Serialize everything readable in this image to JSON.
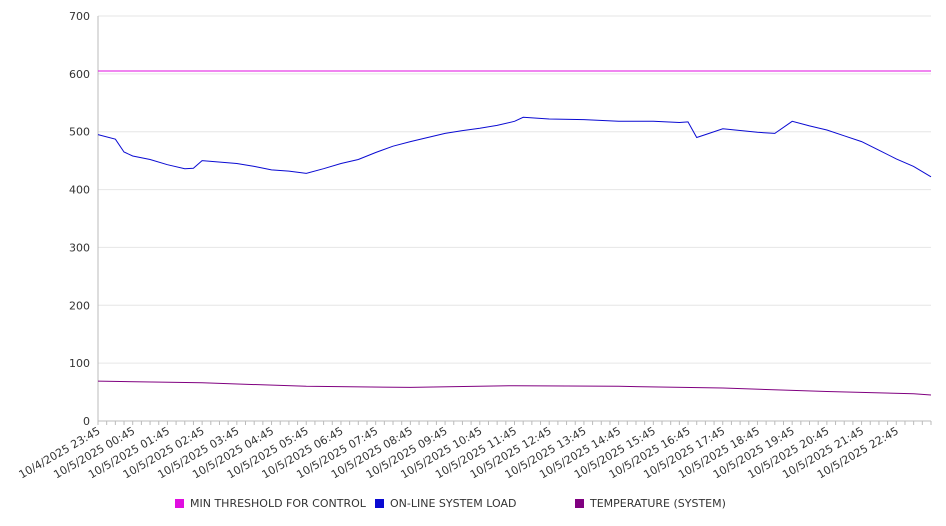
{
  "chart_data": {
    "type": "line",
    "ylim": [
      0,
      700
    ],
    "yticks": [
      0,
      100,
      200,
      300,
      400,
      500,
      600,
      700
    ],
    "xtick_labels": [
      "10/4/2025 23:45",
      "10/5/2025 00:45",
      "10/5/2025 01:45",
      "10/5/2025 02:45",
      "10/5/2025 03:45",
      "10/5/2025 04:45",
      "10/5/2025 05:45",
      "10/5/2025 06:45",
      "10/5/2025 07:45",
      "10/5/2025 08:45",
      "10/5/2025 09:45",
      "10/5/2025 10:45",
      "10/5/2025 11:45",
      "10/5/2025 12:45",
      "10/5/2025 13:45",
      "10/5/2025 14:45",
      "10/5/2025 15:45",
      "10/5/2025 16:45",
      "10/5/2025 17:45",
      "10/5/2025 18:45",
      "10/5/2025 19:45",
      "10/5/2025 20:45",
      "10/5/2025 21:45",
      "10/5/2025 22:45"
    ],
    "grid": true,
    "legend_position": "bottom",
    "series": [
      {
        "name": "MIN THRESHOLD FOR CONTROL",
        "color": "#e00ee0",
        "x": [
          "10/4/2025 23:45",
          "10/5/2025 23:45"
        ],
        "y": [
          605,
          605
        ]
      },
      {
        "name": "ON-LINE SYSTEM LOAD",
        "color": "#0a0ad2",
        "x": [
          "10/4/2025 23:45",
          "10/5/2025 00:15",
          "10/5/2025 00:30",
          "10/5/2025 00:45",
          "10/5/2025 01:15",
          "10/5/2025 01:45",
          "10/5/2025 02:15",
          "10/5/2025 02:30",
          "10/5/2025 02:45",
          "10/5/2025 03:45",
          "10/5/2025 04:15",
          "10/5/2025 04:45",
          "10/5/2025 05:15",
          "10/5/2025 05:45",
          "10/5/2025 06:15",
          "10/5/2025 06:45",
          "10/5/2025 07:15",
          "10/5/2025 07:45",
          "10/5/2025 08:15",
          "10/5/2025 08:45",
          "10/5/2025 09:15",
          "10/5/2025 09:45",
          "10/5/2025 10:15",
          "10/5/2025 10:45",
          "10/5/2025 11:15",
          "10/5/2025 11:45",
          "10/5/2025 12:00",
          "10/5/2025 12:45",
          "10/5/2025 13:45",
          "10/5/2025 14:45",
          "10/5/2025 15:45",
          "10/5/2025 16:30",
          "10/5/2025 16:45",
          "10/5/2025 17:00",
          "10/5/2025 17:15",
          "10/5/2025 17:45",
          "10/5/2025 18:45",
          "10/5/2025 19:15",
          "10/5/2025 19:45",
          "10/5/2025 20:15",
          "10/5/2025 20:45",
          "10/5/2025 21:15",
          "10/5/2025 21:45",
          "10/5/2025 22:15",
          "10/5/2025 22:45",
          "10/5/2025 23:15",
          "10/5/2025 23:45"
        ],
        "y": [
          495,
          487,
          465,
          458,
          452,
          443,
          436,
          437,
          450,
          445,
          440,
          434,
          432,
          428,
          436,
          445,
          452,
          464,
          475,
          483,
          490,
          497,
          502,
          506,
          511,
          518,
          525,
          522,
          521,
          518,
          518,
          516,
          517,
          490,
          495,
          505,
          499,
          497,
          518,
          510,
          503,
          493,
          483,
          468,
          453,
          440,
          422
        ]
      },
      {
        "name": "TEMPERATURE (SYSTEM)",
        "color": "#800080",
        "x": [
          "10/4/2025 23:45",
          "10/5/2025 02:45",
          "10/5/2025 05:45",
          "10/5/2025 08:45",
          "10/5/2025 11:45",
          "10/5/2025 14:45",
          "10/5/2025 17:45",
          "10/5/2025 20:45",
          "10/5/2025 23:15",
          "10/5/2025 23:45"
        ],
        "y": [
          69,
          66,
          60,
          58,
          61,
          60,
          57,
          51,
          47,
          45
        ]
      }
    ]
  }
}
